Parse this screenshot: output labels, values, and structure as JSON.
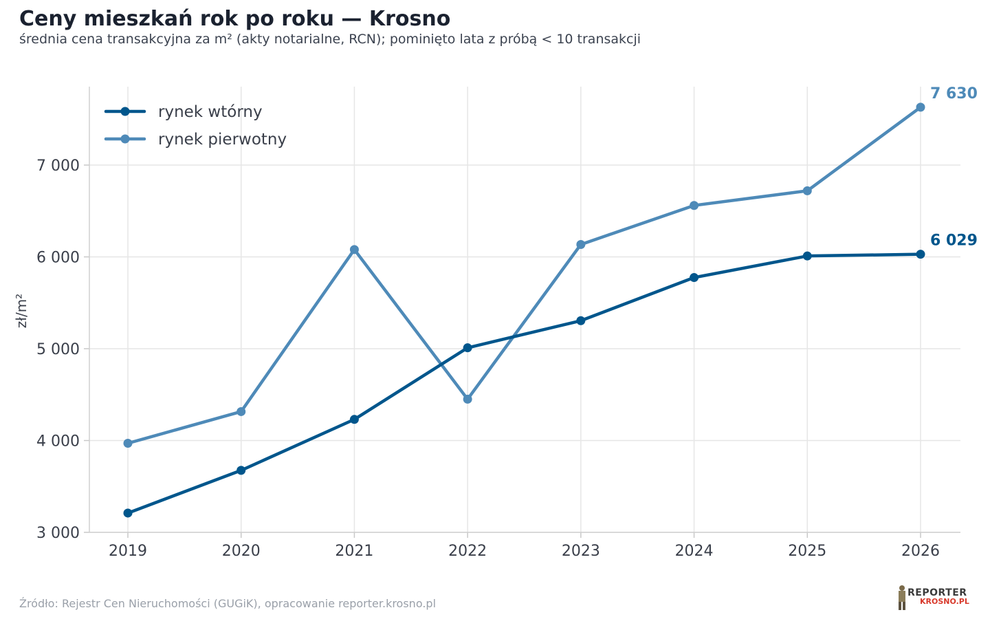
{
  "header": {
    "title": "Ceny mieszkań rok po roku — Krosno",
    "subtitle": "średnia cena transakcyjna za m² (akty notarialne, RCN); pominięto lata z próbą < 10 transakcji"
  },
  "footer": {
    "source": "Źródło: Rejestr Cen Nieruchomości (GUGiK), opracowanie reporter.krosno.pl",
    "logo_top": "REPORTER",
    "logo_bottom": "KROSNO.PL"
  },
  "chart_data": {
    "type": "line",
    "title": "Ceny mieszkań rok po roku — Krosno",
    "subtitle": "średnia cena transakcyjna za m² (akty notarialne, RCN); pominięto lata z próbą < 10 transakcji",
    "xlabel": "",
    "ylabel": "zł/m²",
    "x": [
      "2019",
      "2020",
      "2021",
      "2022",
      "2023",
      "2024",
      "2025",
      "2026"
    ],
    "ylim": [
      3000,
      7750
    ],
    "yticks": [
      3000,
      4000,
      5000,
      6000,
      7000
    ],
    "ytick_labels": [
      "3 000",
      "4 000",
      "5 000",
      "6 000",
      "7 000"
    ],
    "grid": true,
    "legend_position": "top-left",
    "series": [
      {
        "name": "rynek wtórny",
        "color": "#00568c",
        "values": [
          3210,
          3675,
          4230,
          5010,
          5305,
          5775,
          6010,
          6029
        ],
        "end_label": "6 029"
      },
      {
        "name": "rynek pierwotny",
        "color": "#4e8ab8",
        "values": [
          3970,
          4315,
          6080,
          4450,
          6135,
          6560,
          6720,
          7630
        ],
        "end_label": "7 630"
      }
    ]
  }
}
